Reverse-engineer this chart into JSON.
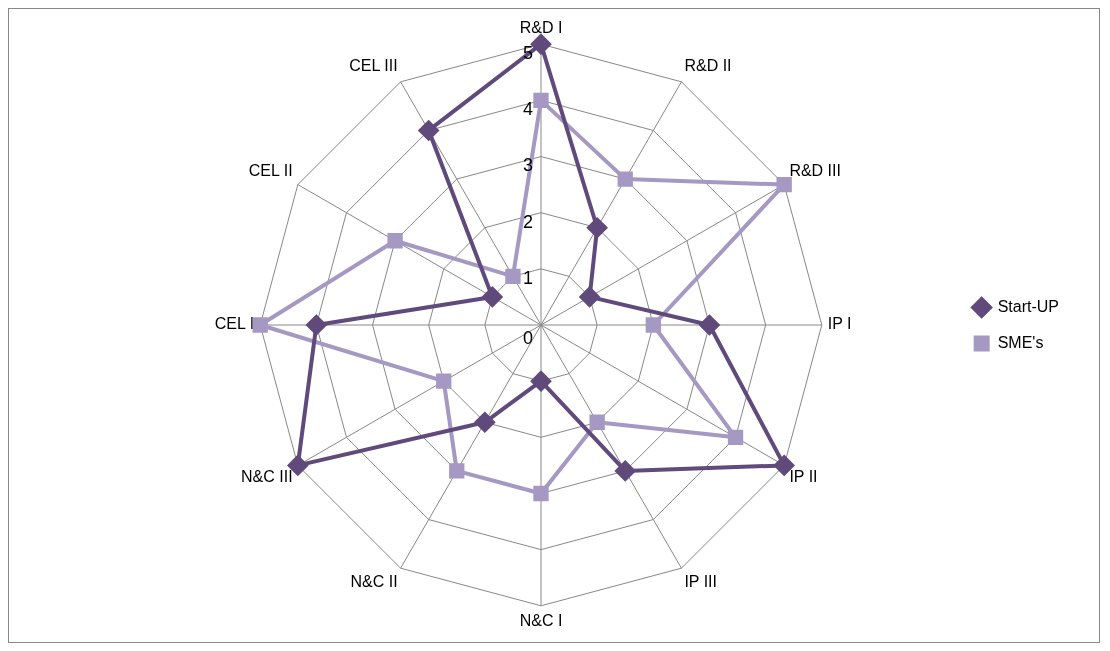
{
  "chart_data": {
    "type": "radar",
    "categories": [
      "R&D I",
      "R&D II",
      "R&D III",
      "IP I",
      "IP II",
      "IP III",
      "N&C I",
      "N&C II",
      "N&C III",
      "CEL I",
      "CEL II",
      "CEL III"
    ],
    "series": [
      {
        "name": "Start-UP",
        "color": "#604a7b",
        "marker": "diamond",
        "values": [
          5,
          2,
          1,
          3,
          5,
          3,
          1,
          2,
          5,
          4,
          1,
          4
        ]
      },
      {
        "name": "SME's",
        "color": "#a598c2",
        "marker": "square",
        "values": [
          4,
          3,
          5,
          2,
          4,
          2,
          3,
          3,
          2,
          5,
          3,
          1
        ]
      }
    ],
    "ylim": [
      0,
      5
    ],
    "yticks": [
      0,
      1,
      2,
      3,
      4,
      5
    ],
    "grid": true,
    "legend": "right",
    "line_style": "solid"
  }
}
